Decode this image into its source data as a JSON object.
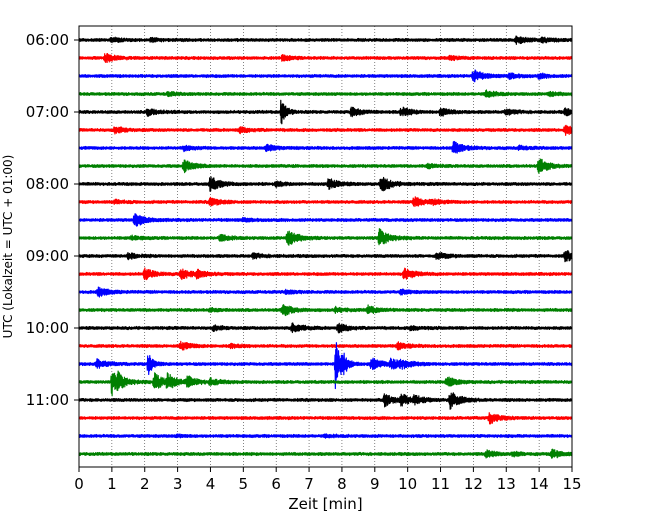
{
  "chart_data": {
    "type": "line",
    "title": "",
    "xlabel": "Zeit  [min]",
    "ylabel": "UTC (Lokalzeit = UTC + 01:00)",
    "xlim": [
      0,
      15
    ],
    "xticks": [
      0,
      1,
      2,
      3,
      4,
      5,
      6,
      7,
      8,
      9,
      10,
      11,
      12,
      13,
      14,
      15
    ],
    "grid": "vertical dotted",
    "row_interval_minutes": 15,
    "rows": [
      {
        "start": "06:00",
        "color": "#000000",
        "events": [
          {
            "t": 1.0,
            "a": 0.6
          },
          {
            "t": 2.2,
            "a": 0.5
          },
          {
            "t": 13.3,
            "a": 1.2
          },
          {
            "t": 14.1,
            "a": 0.7
          }
        ]
      },
      {
        "start": "06:15",
        "color": "#ff0000",
        "events": [
          {
            "t": 0.8,
            "a": 1.3
          },
          {
            "t": 6.2,
            "a": 0.8
          },
          {
            "t": 11.3,
            "a": 0.6
          }
        ]
      },
      {
        "start": "06:30",
        "color": "#0000ff",
        "events": [
          {
            "t": 12.0,
            "a": 1.8
          },
          {
            "t": 13.1,
            "a": 0.7
          },
          {
            "t": 14.0,
            "a": 0.6
          }
        ]
      },
      {
        "start": "06:45",
        "color": "#008000",
        "events": [
          {
            "t": 2.7,
            "a": 0.5
          },
          {
            "t": 12.4,
            "a": 0.9
          },
          {
            "t": 14.3,
            "a": 0.6
          }
        ]
      },
      {
        "start": "07:00",
        "color": "#000000",
        "events": [
          {
            "t": 6.15,
            "a": 4.5
          },
          {
            "t": 2.1,
            "a": 1.0
          },
          {
            "t": 8.3,
            "a": 1.3
          },
          {
            "t": 9.8,
            "a": 1.4
          },
          {
            "t": 11.0,
            "a": 1.1
          },
          {
            "t": 13.0,
            "a": 0.8
          },
          {
            "t": 14.8,
            "a": 0.9
          }
        ]
      },
      {
        "start": "07:15",
        "color": "#ff0000",
        "events": [
          {
            "t": 1.1,
            "a": 1.0
          },
          {
            "t": 4.9,
            "a": 0.8
          },
          {
            "t": 14.8,
            "a": 1.4
          }
        ]
      },
      {
        "start": "07:30",
        "color": "#0000ff",
        "events": [
          {
            "t": 3.2,
            "a": 0.7
          },
          {
            "t": 5.7,
            "a": 0.9
          },
          {
            "t": 11.4,
            "a": 2.0
          },
          {
            "t": 13.4,
            "a": 0.5
          }
        ]
      },
      {
        "start": "07:45",
        "color": "#008000",
        "events": [
          {
            "t": 3.2,
            "a": 1.8
          },
          {
            "t": 10.6,
            "a": 0.6
          },
          {
            "t": 14.0,
            "a": 2.2
          }
        ]
      },
      {
        "start": "08:00",
        "color": "#000000",
        "events": [
          {
            "t": 4.0,
            "a": 2.2
          },
          {
            "t": 7.6,
            "a": 1.6
          },
          {
            "t": 9.2,
            "a": 2.4
          },
          {
            "t": 6.0,
            "a": 0.6
          }
        ]
      },
      {
        "start": "08:15",
        "color": "#ff0000",
        "events": [
          {
            "t": 4.0,
            "a": 1.2
          },
          {
            "t": 10.2,
            "a": 1.4
          },
          {
            "t": 10.7,
            "a": 0.8
          },
          {
            "t": 1.1,
            "a": 0.5
          }
        ]
      },
      {
        "start": "08:30",
        "color": "#0000ff",
        "events": [
          {
            "t": 1.7,
            "a": 2.0
          },
          {
            "t": 5.0,
            "a": 0.4
          }
        ]
      },
      {
        "start": "08:45",
        "color": "#008000",
        "events": [
          {
            "t": 6.35,
            "a": 2.6
          },
          {
            "t": 9.15,
            "a": 2.6
          },
          {
            "t": 4.3,
            "a": 0.9
          },
          {
            "t": 1.6,
            "a": 0.5
          }
        ]
      },
      {
        "start": "09:00",
        "color": "#000000",
        "events": [
          {
            "t": 1.5,
            "a": 0.8
          },
          {
            "t": 5.3,
            "a": 0.7
          },
          {
            "t": 10.9,
            "a": 1.0
          },
          {
            "t": 14.8,
            "a": 1.6
          }
        ]
      },
      {
        "start": "09:15",
        "color": "#ff0000",
        "events": [
          {
            "t": 2.0,
            "a": 1.6
          },
          {
            "t": 3.1,
            "a": 1.7
          },
          {
            "t": 3.6,
            "a": 1.0
          },
          {
            "t": 9.9,
            "a": 1.8
          }
        ]
      },
      {
        "start": "09:30",
        "color": "#0000ff",
        "events": [
          {
            "t": 0.6,
            "a": 1.3
          },
          {
            "t": 6.3,
            "a": 0.5
          },
          {
            "t": 9.8,
            "a": 0.6
          }
        ]
      },
      {
        "start": "09:45",
        "color": "#008000",
        "events": [
          {
            "t": 6.2,
            "a": 1.8
          },
          {
            "t": 7.8,
            "a": 0.7
          },
          {
            "t": 8.8,
            "a": 1.1
          },
          {
            "t": 4.0,
            "a": 0.4
          }
        ]
      },
      {
        "start": "10:00",
        "color": "#000000",
        "events": [
          {
            "t": 6.5,
            "a": 1.6
          },
          {
            "t": 7.9,
            "a": 1.3
          },
          {
            "t": 4.1,
            "a": 0.7
          },
          {
            "t": 10.1,
            "a": 0.6
          }
        ]
      },
      {
        "start": "10:15",
        "color": "#ff0000",
        "events": [
          {
            "t": 3.1,
            "a": 1.2
          },
          {
            "t": 4.6,
            "a": 0.6
          },
          {
            "t": 9.7,
            "a": 0.9
          }
        ]
      },
      {
        "start": "10:30",
        "color": "#0000ff",
        "events": [
          {
            "t": 0.55,
            "a": 1.3
          },
          {
            "t": 2.1,
            "a": 3.5
          },
          {
            "t": 7.8,
            "a": 9.0
          },
          {
            "t": 8.0,
            "a": 3.5
          },
          {
            "t": 8.9,
            "a": 1.8
          },
          {
            "t": 9.5,
            "a": 1.4
          },
          {
            "t": 9.8,
            "a": 1.2
          }
        ]
      },
      {
        "start": "10:45",
        "color": "#008000",
        "events": [
          {
            "t": 1.0,
            "a": 4.5
          },
          {
            "t": 1.2,
            "a": 2.0
          },
          {
            "t": 2.3,
            "a": 2.5
          },
          {
            "t": 2.7,
            "a": 2.0
          },
          {
            "t": 3.3,
            "a": 1.5
          },
          {
            "t": 4.0,
            "a": 0.9
          },
          {
            "t": 11.2,
            "a": 1.4
          }
        ]
      },
      {
        "start": "11:00",
        "color": "#000000",
        "events": [
          {
            "t": 9.3,
            "a": 1.8
          },
          {
            "t": 9.8,
            "a": 1.6
          },
          {
            "t": 10.2,
            "a": 1.1
          },
          {
            "t": 11.3,
            "a": 2.6
          }
        ]
      },
      {
        "start": "11:15",
        "color": "#ff0000",
        "events": [
          {
            "t": 12.5,
            "a": 1.6
          }
        ]
      },
      {
        "start": "11:30",
        "color": "#0000ff",
        "events": [
          {
            "t": 3.0,
            "a": 0.3
          },
          {
            "t": 7.5,
            "a": 0.3
          }
        ]
      },
      {
        "start": "11:45",
        "color": "#008000",
        "events": [
          {
            "t": 12.4,
            "a": 1.0
          },
          {
            "t": 14.4,
            "a": 1.2
          },
          {
            "t": 13.2,
            "a": 0.6
          }
        ]
      }
    ],
    "hour_labels": [
      {
        "label": "06:00",
        "row": 0
      },
      {
        "label": "07:00",
        "row": 4
      },
      {
        "label": "08:00",
        "row": 8
      },
      {
        "label": "09:00",
        "row": 12
      },
      {
        "label": "10:00",
        "row": 16
      },
      {
        "label": "11:00",
        "row": 20
      }
    ]
  }
}
